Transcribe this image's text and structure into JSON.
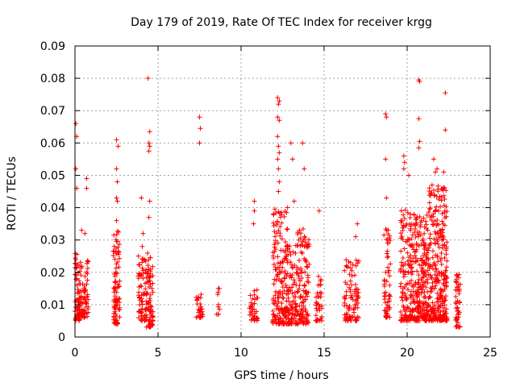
{
  "chart_data": {
    "type": "scatter",
    "title": "Day 179 of 2019, Rate Of TEC Index for receiver krgg",
    "xlabel": "GPS time / hours",
    "ylabel": "ROTI / TECUs",
    "xlim": [
      0,
      25
    ],
    "ylim": [
      0,
      0.09
    ],
    "x_ticks": [
      "0",
      "5",
      "10",
      "15",
      "20",
      "25"
    ],
    "y_ticks": [
      "0",
      "0.01",
      "0.02",
      "0.03",
      "0.04",
      "0.05",
      "0.06",
      "0.07",
      "0.08",
      "0.09"
    ],
    "grid": true,
    "marker": "+",
    "series_color": "#ff0000",
    "outliers": [
      {
        "x": 0.05,
        "y": 0.066
      },
      {
        "x": 0.1,
        "y": 0.062
      },
      {
        "x": 0.05,
        "y": 0.052
      },
      {
        "x": 0.1,
        "y": 0.046
      },
      {
        "x": 0.7,
        "y": 0.049
      },
      {
        "x": 0.7,
        "y": 0.046
      },
      {
        "x": 0.4,
        "y": 0.033
      },
      {
        "x": 0.6,
        "y": 0.032
      },
      {
        "x": 2.5,
        "y": 0.061
      },
      {
        "x": 2.6,
        "y": 0.059
      },
      {
        "x": 2.5,
        "y": 0.052
      },
      {
        "x": 2.55,
        "y": 0.048
      },
      {
        "x": 2.5,
        "y": 0.043
      },
      {
        "x": 2.55,
        "y": 0.042
      },
      {
        "x": 2.5,
        "y": 0.036
      },
      {
        "x": 4.4,
        "y": 0.08
      },
      {
        "x": 4.5,
        "y": 0.0635
      },
      {
        "x": 4.45,
        "y": 0.06
      },
      {
        "x": 4.5,
        "y": 0.059
      },
      {
        "x": 4.45,
        "y": 0.0575
      },
      {
        "x": 4.5,
        "y": 0.042
      },
      {
        "x": 4.45,
        "y": 0.037
      },
      {
        "x": 4.0,
        "y": 0.043
      },
      {
        "x": 4.1,
        "y": 0.032
      },
      {
        "x": 4.05,
        "y": 0.028
      },
      {
        "x": 7.5,
        "y": 0.068
      },
      {
        "x": 7.55,
        "y": 0.0645
      },
      {
        "x": 7.5,
        "y": 0.06
      },
      {
        "x": 10.8,
        "y": 0.042
      },
      {
        "x": 10.8,
        "y": 0.039
      },
      {
        "x": 10.75,
        "y": 0.035
      },
      {
        "x": 12.2,
        "y": 0.074
      },
      {
        "x": 12.3,
        "y": 0.073
      },
      {
        "x": 12.25,
        "y": 0.072
      },
      {
        "x": 12.2,
        "y": 0.068
      },
      {
        "x": 12.3,
        "y": 0.067
      },
      {
        "x": 12.2,
        "y": 0.062
      },
      {
        "x": 12.25,
        "y": 0.059
      },
      {
        "x": 12.3,
        "y": 0.057
      },
      {
        "x": 12.2,
        "y": 0.055
      },
      {
        "x": 12.25,
        "y": 0.052
      },
      {
        "x": 12.3,
        "y": 0.048
      },
      {
        "x": 12.25,
        "y": 0.045
      },
      {
        "x": 13.0,
        "y": 0.06
      },
      {
        "x": 13.1,
        "y": 0.055
      },
      {
        "x": 13.2,
        "y": 0.042
      },
      {
        "x": 12.8,
        "y": 0.04
      },
      {
        "x": 13.7,
        "y": 0.06
      },
      {
        "x": 13.8,
        "y": 0.052
      },
      {
        "x": 14.7,
        "y": 0.039
      },
      {
        "x": 17.0,
        "y": 0.035
      },
      {
        "x": 16.9,
        "y": 0.031
      },
      {
        "x": 18.7,
        "y": 0.069
      },
      {
        "x": 18.75,
        "y": 0.068
      },
      {
        "x": 18.7,
        "y": 0.055
      },
      {
        "x": 18.75,
        "y": 0.043
      },
      {
        "x": 19.8,
        "y": 0.056
      },
      {
        "x": 19.85,
        "y": 0.054
      },
      {
        "x": 19.8,
        "y": 0.052
      },
      {
        "x": 20.1,
        "y": 0.05
      },
      {
        "x": 20.7,
        "y": 0.0795
      },
      {
        "x": 20.75,
        "y": 0.079
      },
      {
        "x": 20.7,
        "y": 0.0675
      },
      {
        "x": 20.75,
        "y": 0.0605
      },
      {
        "x": 20.7,
        "y": 0.0585
      },
      {
        "x": 21.6,
        "y": 0.055
      },
      {
        "x": 21.8,
        "y": 0.052
      },
      {
        "x": 21.7,
        "y": 0.051
      },
      {
        "x": 22.3,
        "y": 0.0755
      },
      {
        "x": 22.3,
        "y": 0.064
      },
      {
        "x": 22.2,
        "y": 0.051
      },
      {
        "x": 21.5,
        "y": 0.047
      }
    ],
    "clusters": [
      {
        "x_range": [
          0.0,
          0.3
        ],
        "y_range": [
          0.005,
          0.026
        ],
        "count": 60
      },
      {
        "x_range": [
          0.3,
          0.8
        ],
        "y_range": [
          0.006,
          0.024
        ],
        "count": 70
      },
      {
        "x_range": [
          2.3,
          2.7
        ],
        "y_range": [
          0.004,
          0.034
        ],
        "count": 90
      },
      {
        "x_range": [
          3.8,
          4.3
        ],
        "y_range": [
          0.005,
          0.026
        ],
        "count": 70
      },
      {
        "x_range": [
          4.3,
          4.7
        ],
        "y_range": [
          0.003,
          0.026
        ],
        "count": 80
      },
      {
        "x_range": [
          7.3,
          7.7
        ],
        "y_range": [
          0.006,
          0.015
        ],
        "count": 30
      },
      {
        "x_range": [
          8.5,
          8.7
        ],
        "y_range": [
          0.007,
          0.017
        ],
        "count": 10
      },
      {
        "x_range": [
          10.5,
          11.0
        ],
        "y_range": [
          0.005,
          0.015
        ],
        "count": 35
      },
      {
        "x_range": [
          11.9,
          12.8
        ],
        "y_range": [
          0.004,
          0.04
        ],
        "count": 180
      },
      {
        "x_range": [
          12.8,
          13.4
        ],
        "y_range": [
          0.004,
          0.03
        ],
        "count": 90
      },
      {
        "x_range": [
          13.4,
          14.1
        ],
        "y_range": [
          0.004,
          0.034
        ],
        "count": 110
      },
      {
        "x_range": [
          14.5,
          14.9
        ],
        "y_range": [
          0.005,
          0.02
        ],
        "count": 40
      },
      {
        "x_range": [
          16.2,
          16.7
        ],
        "y_range": [
          0.005,
          0.024
        ],
        "count": 50
      },
      {
        "x_range": [
          16.7,
          17.1
        ],
        "y_range": [
          0.005,
          0.025
        ],
        "count": 40
      },
      {
        "x_range": [
          18.6,
          19.0
        ],
        "y_range": [
          0.006,
          0.035
        ],
        "count": 60
      },
      {
        "x_range": [
          19.6,
          20.2
        ],
        "y_range": [
          0.005,
          0.04
        ],
        "count": 110
      },
      {
        "x_range": [
          20.2,
          21.3
        ],
        "y_range": [
          0.005,
          0.038
        ],
        "count": 260
      },
      {
        "x_range": [
          21.3,
          22.4
        ],
        "y_range": [
          0.005,
          0.047
        ],
        "count": 300
      },
      {
        "x_range": [
          22.9,
          23.2
        ],
        "y_range": [
          0.003,
          0.02
        ],
        "count": 50
      }
    ]
  }
}
